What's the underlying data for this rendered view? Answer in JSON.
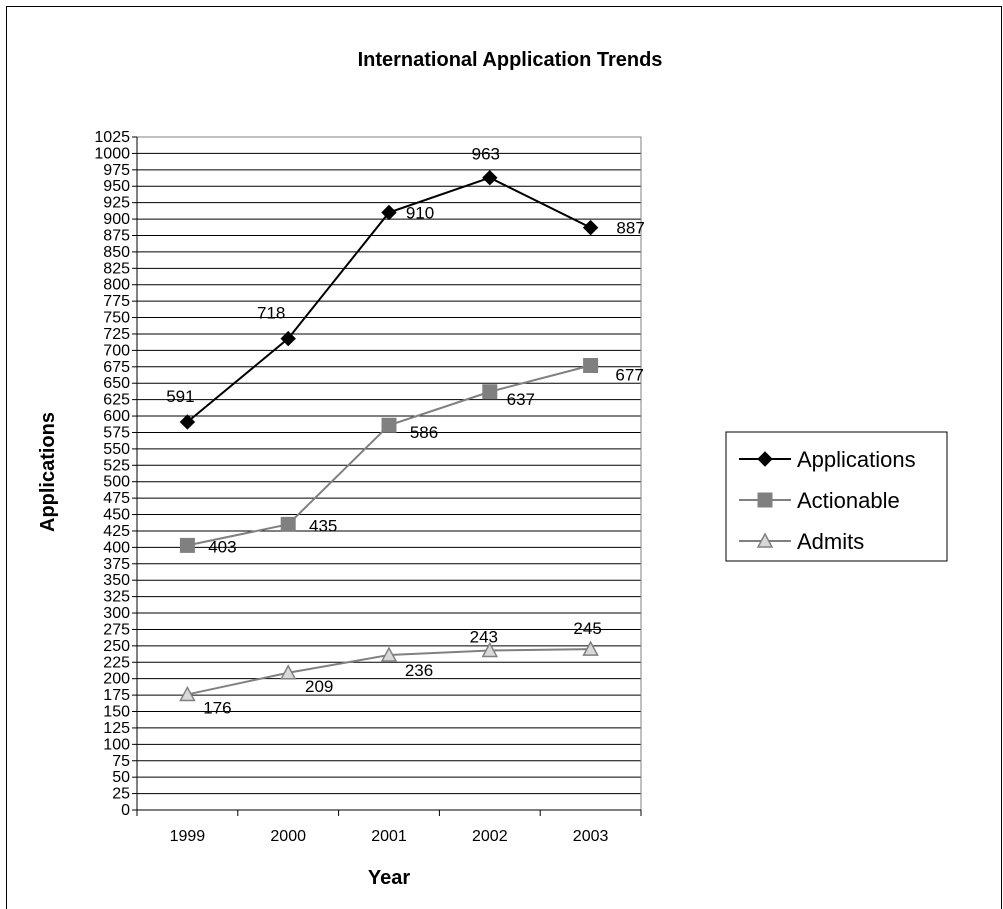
{
  "chart_data": {
    "type": "line",
    "title": "International Application Trends",
    "xlabel": "Year",
    "ylabel": "Applications",
    "categories": [
      "1999",
      "2000",
      "2001",
      "2002",
      "2003"
    ],
    "ylim": [
      0,
      1025
    ],
    "ytick_step": 25,
    "grid": true,
    "legend_position": "right",
    "series": [
      {
        "name": "Applications",
        "values": [
          591,
          718,
          910,
          963,
          887
        ],
        "color": "#000000",
        "marker": "diamond"
      },
      {
        "name": "Actionable",
        "values": [
          403,
          435,
          586,
          637,
          677
        ],
        "color": "#808080",
        "marker": "square"
      },
      {
        "name": "Admits",
        "values": [
          176,
          209,
          236,
          243,
          245
        ],
        "color": "#808080",
        "marker": "triangle"
      }
    ]
  }
}
